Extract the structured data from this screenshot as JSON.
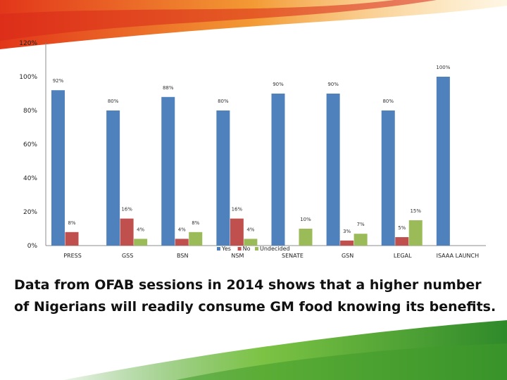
{
  "colors": {
    "yes": "#4f81bd",
    "no": "#c0504d",
    "undecided": "#9bbb59",
    "swoosh_orange": "#f28a2e",
    "swoosh_red": "#d92c1c",
    "swoosh_green": "#6fbf3f",
    "caption": "#111111"
  },
  "chart_data": {
    "type": "bar",
    "categories": [
      "PRESS",
      "GSS",
      "BSN",
      "NSM",
      "SENATE",
      "GSN",
      "LEGAL",
      "ISAAA LAUNCH"
    ],
    "series": [
      {
        "name": "Yes",
        "values": [
          92,
          80,
          88,
          80,
          90,
          90,
          80,
          100
        ]
      },
      {
        "name": "No",
        "values": [
          8,
          16,
          4,
          16,
          0,
          3,
          5,
          0
        ]
      },
      {
        "name": "Undecided",
        "values": [
          0,
          4,
          8,
          4,
          10,
          7,
          15,
          0
        ]
      }
    ],
    "value_labels": {
      "Yes": [
        "92%",
        "80%",
        "88%",
        "80%",
        "90%",
        "90%",
        "80%",
        "100%"
      ],
      "No": [
        "8%",
        "16%",
        "4%",
        "16%",
        "",
        "3%",
        "5%",
        ""
      ],
      "Undecided": [
        "",
        "4%",
        "8%",
        "4%",
        "10%",
        "7%",
        "15%",
        ""
      ]
    },
    "y_ticks": [
      0,
      20,
      40,
      60,
      80,
      100,
      120
    ],
    "y_tick_labels": [
      "0%",
      "20%",
      "40%",
      "60%",
      "80%",
      "100%",
      "120%"
    ],
    "ylim": [
      0,
      120
    ],
    "legend": [
      "Yes",
      "No",
      "Undecided"
    ],
    "legend_position": "bottom-center",
    "grid": false
  },
  "caption": "Data from OFAB sessions in 2014 shows that a higher number of Nigerians will readily consume GM food knowing its benefits."
}
